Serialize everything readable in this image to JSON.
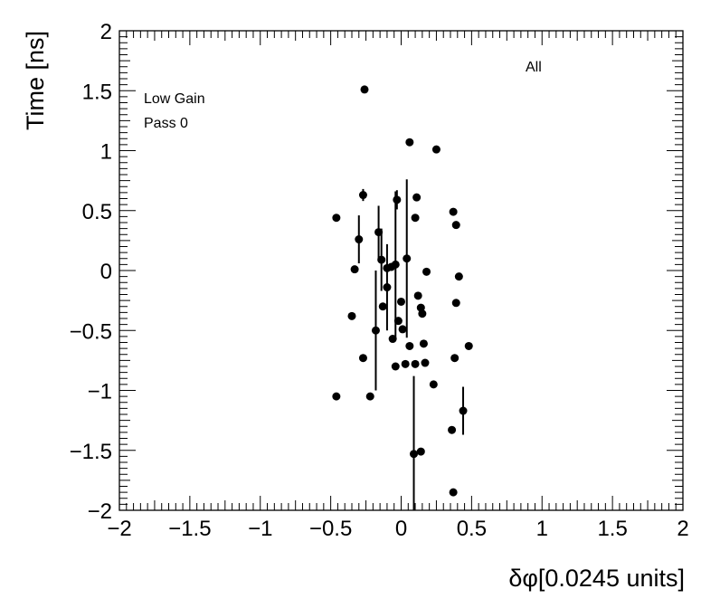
{
  "chart_data": {
    "type": "scatter",
    "title": "",
    "xlabel": "δφ[0.0245 units]",
    "ylabel": "Time [ns]",
    "xlim": [
      -2,
      2
    ],
    "ylim": [
      -2,
      2
    ],
    "x_ticks": [
      "−2",
      "−1.5",
      "−1",
      "−0.5",
      "0",
      "0.5",
      "1",
      "1.5",
      "2"
    ],
    "y_ticks": [
      "−2",
      "−1.5",
      "−1",
      "−0.5",
      "0",
      "0.5",
      "1",
      "1.5",
      "2"
    ],
    "grid": false,
    "annotations": [
      "Low Gain",
      "Pass 0",
      "All"
    ],
    "marker_color": "#000000",
    "points": [
      {
        "x": -0.26,
        "y": 1.51
      },
      {
        "x": 0.06,
        "y": 1.07
      },
      {
        "x": 0.25,
        "y": 1.01
      },
      {
        "x": -0.27,
        "y": 0.63,
        "err": 0.05
      },
      {
        "x": -0.46,
        "y": 0.44
      },
      {
        "x": -0.03,
        "y": 0.59,
        "err": 0.08
      },
      {
        "x": 0.11,
        "y": 0.61
      },
      {
        "x": 0.1,
        "y": 0.44
      },
      {
        "x": 0.37,
        "y": 0.49
      },
      {
        "x": 0.39,
        "y": 0.38
      },
      {
        "x": -0.16,
        "y": 0.32,
        "err": 0.22
      },
      {
        "x": -0.3,
        "y": 0.26,
        "err": 0.2
      },
      {
        "x": -0.33,
        "y": 0.01
      },
      {
        "x": -0.14,
        "y": 0.09,
        "err": 0.26
      },
      {
        "x": 0.04,
        "y": 0.1,
        "err": 0.66
      },
      {
        "x": -0.04,
        "y": 0.05,
        "err": 0.61
      },
      {
        "x": -0.07,
        "y": 0.03
      },
      {
        "x": -0.1,
        "y": 0.02
      },
      {
        "x": 0.18,
        "y": -0.01
      },
      {
        "x": 0.41,
        "y": -0.05
      },
      {
        "x": -0.1,
        "y": -0.14,
        "err": 0.36
      },
      {
        "x": -0.13,
        "y": -0.3
      },
      {
        "x": 0.12,
        "y": -0.21
      },
      {
        "x": 0.0,
        "y": -0.26
      },
      {
        "x": 0.39,
        "y": -0.27
      },
      {
        "x": 0.14,
        "y": -0.31
      },
      {
        "x": 0.15,
        "y": -0.36
      },
      {
        "x": -0.35,
        "y": -0.38
      },
      {
        "x": -0.02,
        "y": -0.42
      },
      {
        "x": 0.01,
        "y": -0.49
      },
      {
        "x": -0.18,
        "y": -0.5,
        "err": 0.5
      },
      {
        "x": -0.06,
        "y": -0.57
      },
      {
        "x": 0.16,
        "y": -0.61
      },
      {
        "x": 0.06,
        "y": -0.63
      },
      {
        "x": 0.48,
        "y": -0.63
      },
      {
        "x": -0.27,
        "y": -0.73
      },
      {
        "x": 0.38,
        "y": -0.73
      },
      {
        "x": -0.04,
        "y": -0.8
      },
      {
        "x": 0.03,
        "y": -0.78
      },
      {
        "x": 0.1,
        "y": -0.78
      },
      {
        "x": 0.17,
        "y": -0.77
      },
      {
        "x": 0.23,
        "y": -0.95
      },
      {
        "x": -0.46,
        "y": -1.05
      },
      {
        "x": -0.22,
        "y": -1.05
      },
      {
        "x": 0.44,
        "y": -1.17,
        "err": 0.2
      },
      {
        "x": 0.36,
        "y": -1.33
      },
      {
        "x": 0.14,
        "y": -1.51
      },
      {
        "x": 0.09,
        "y": -1.53,
        "err": 0.65
      },
      {
        "x": 0.37,
        "y": -1.85
      }
    ]
  }
}
